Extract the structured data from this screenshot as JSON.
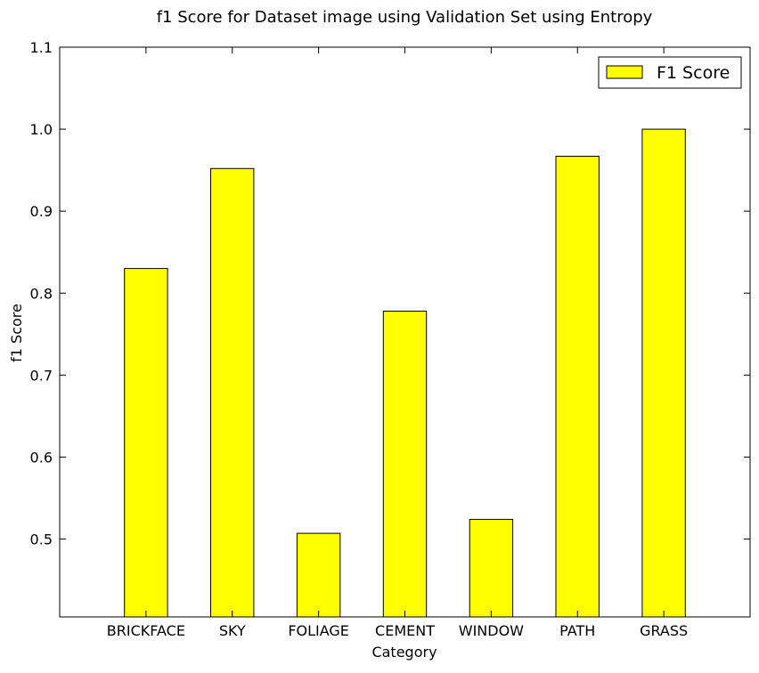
{
  "chart_data": {
    "type": "bar",
    "title": "f1 Score for Dataset image using Validation Set using Entropy",
    "xlabel": "Category",
    "ylabel": "f1 Score",
    "categories": [
      "BRICKFACE",
      "SKY",
      "FOLIAGE",
      "CEMENT",
      "WINDOW",
      "PATH",
      "GRASS"
    ],
    "series": [
      {
        "name": "F1 Score",
        "color": "#ffff00",
        "values": [
          0.83,
          0.952,
          0.507,
          0.778,
          0.524,
          0.967,
          1.0
        ]
      }
    ],
    "ylim": [
      0.405,
      1.1
    ],
    "yticks": [
      0.5,
      0.6,
      0.7,
      0.8,
      0.9,
      1.0,
      1.1
    ],
    "ytick_labels": [
      "0.5",
      "0.6",
      "0.7",
      "0.8",
      "0.9",
      "1.0",
      "1.1"
    ],
    "grid": false,
    "legend_position": "top-right"
  }
}
